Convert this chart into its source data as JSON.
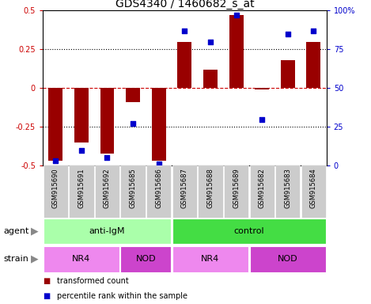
{
  "title": "GDS4340 / 1460682_s_at",
  "samples": [
    "GSM915690",
    "GSM915691",
    "GSM915692",
    "GSM915685",
    "GSM915686",
    "GSM915687",
    "GSM915688",
    "GSM915689",
    "GSM915682",
    "GSM915683",
    "GSM915684"
  ],
  "bar_values": [
    -0.47,
    -0.35,
    -0.42,
    -0.09,
    -0.47,
    0.3,
    0.12,
    0.47,
    -0.01,
    0.18,
    0.3
  ],
  "percentile_values": [
    3,
    10,
    5,
    27,
    1,
    87,
    80,
    97,
    30,
    85,
    87
  ],
  "bar_color": "#990000",
  "dot_color": "#0000cc",
  "ylim_left": [
    -0.5,
    0.5
  ],
  "ylim_right": [
    0,
    100
  ],
  "yticks_left": [
    -0.5,
    -0.25,
    0,
    0.25,
    0.5
  ],
  "yticks_right": [
    0,
    25,
    50,
    75,
    100
  ],
  "ytick_labels_left": [
    "-0.5",
    "-0.25",
    "0",
    "0.25",
    "0.5"
  ],
  "ytick_labels_right": [
    "0",
    "25",
    "50",
    "75",
    "100%"
  ],
  "hlines": [
    -0.25,
    0,
    0.25
  ],
  "hline_zero_color": "#cc0000",
  "hline_zero_style": "--",
  "hline_grid_style": ":",
  "agent_groups": [
    {
      "label": "anti-IgM",
      "start": 0,
      "end": 5,
      "color": "#aaffaa"
    },
    {
      "label": "control",
      "start": 5,
      "end": 11,
      "color": "#44dd44"
    }
  ],
  "strain_groups": [
    {
      "label": "NR4",
      "start": 0,
      "end": 3,
      "color": "#ee88ee"
    },
    {
      "label": "NOD",
      "start": 3,
      "end": 5,
      "color": "#cc44cc"
    },
    {
      "label": "NR4",
      "start": 5,
      "end": 8,
      "color": "#ee88ee"
    },
    {
      "label": "NOD",
      "start": 8,
      "end": 11,
      "color": "#cc44cc"
    }
  ],
  "agent_label": "agent",
  "strain_label": "strain",
  "legend_items": [
    {
      "label": "transformed count",
      "color": "#990000",
      "marker": "s"
    },
    {
      "label": "percentile rank within the sample",
      "color": "#0000cc",
      "marker": "s"
    }
  ],
  "bar_width": 0.55,
  "bg": "#ffffff",
  "label_bg": "#cccccc",
  "tick_label_fontsize": 7,
  "sample_fontsize": 6,
  "group_fontsize": 8,
  "legend_fontsize": 7,
  "title_fontsize": 10
}
